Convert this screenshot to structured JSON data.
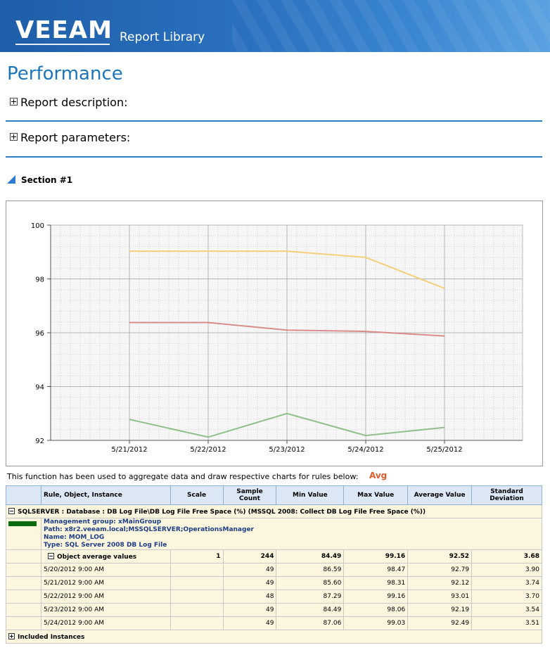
{
  "header": {
    "logo": "VEEAM",
    "library": "Report Library"
  },
  "page_title": "Performance",
  "expanders": {
    "description": "Report description:",
    "parameters": "Report parameters:"
  },
  "section_label": "Section #1",
  "chart_data": {
    "type": "line",
    "x_ticks": [
      "5/21/2012",
      "5/22/2012",
      "5/23/2012",
      "5/24/2012",
      "5/25/2012"
    ],
    "y_ticks": [
      "100",
      "98",
      "96",
      "94",
      "92"
    ],
    "ylim": [
      92,
      100
    ],
    "grid": true,
    "series": [
      {
        "color": "#f5cf7a",
        "values": [
          99.03,
          99.03,
          99.03,
          98.8,
          97.65
        ]
      },
      {
        "color": "#d98c8c",
        "values": [
          96.38,
          96.38,
          96.1,
          96.05,
          95.88
        ]
      },
      {
        "color": "#8fbf8a",
        "values": [
          92.78,
          92.12,
          93.0,
          92.18,
          92.48
        ]
      }
    ]
  },
  "function_text": "This function has been used to aggregate data and draw respective charts for rules below:",
  "function_value": "Avg",
  "table": {
    "headers": [
      "Rule, Object, Instance",
      "Scale",
      "Sample Count",
      "Min Value",
      "Max Value",
      "Average Value",
      "Standard Deviation"
    ],
    "group_title": "SQLSERVER : Database : DB Log File\\DB Log File Free Space (%) (MSSQL 2008: Collect DB Log File Free Space (%))",
    "meta": {
      "group": "Management group: xMainGroup",
      "path": "Path: x8r2.veeam.local;MSSQLSERVER;OperationsManager",
      "name": "Name: MOM_LOG",
      "type": "Type: SQL Server 2008 DB Log File"
    },
    "summary": {
      "label": "Object average values",
      "scale": "1",
      "count": "244",
      "min": "84.49",
      "max": "99.16",
      "avg": "92.52",
      "std": "3.68"
    },
    "rows": [
      {
        "date": "5/20/2012 9:00 AM",
        "count": "49",
        "min": "86.59",
        "max": "98.47",
        "avg": "92.79",
        "std": "3.90"
      },
      {
        "date": "5/21/2012 9:00 AM",
        "count": "49",
        "min": "85.60",
        "max": "98.31",
        "avg": "92.12",
        "std": "3.74"
      },
      {
        "date": "5/22/2012 9:00 AM",
        "count": "48",
        "min": "87.29",
        "max": "99.16",
        "avg": "93.01",
        "std": "3.70"
      },
      {
        "date": "5/23/2012 9:00 AM",
        "count": "49",
        "min": "84.49",
        "max": "98.06",
        "avg": "92.19",
        "std": "3.54"
      },
      {
        "date": "5/24/2012 9:00 AM",
        "count": "49",
        "min": "87.06",
        "max": "99.03",
        "avg": "92.49",
        "std": "3.51"
      }
    ],
    "included": "Included Instances"
  }
}
